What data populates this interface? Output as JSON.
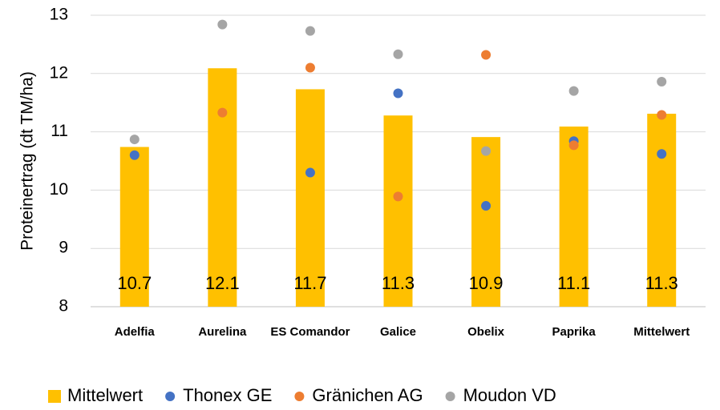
{
  "chart_data": {
    "type": "bar",
    "y_label": "Proteinertrag (dt TM/ha)",
    "categories": [
      "Adelfia",
      "Aurelina",
      "ES Comandor",
      "Galice",
      "Obelix",
      "Paprika",
      "Mittelwert"
    ],
    "series": [
      {
        "name": "Mittelwert",
        "type": "bar",
        "color": "#ffc000",
        "values": [
          10.74,
          12.09,
          11.73,
          11.28,
          10.91,
          11.09,
          11.31
        ],
        "value_labels": [
          "10.7",
          "12.1",
          "11.7",
          "11.3",
          "10.9",
          "11.1",
          "11.3"
        ]
      },
      {
        "name": "Thonex GE",
        "type": "scatter",
        "color": "#4472c4",
        "values": [
          10.6,
          null,
          10.3,
          11.66,
          9.73,
          10.84,
          10.62
        ]
      },
      {
        "name": "Gränichen AG",
        "type": "scatter",
        "color": "#ed7d31",
        "values": [
          null,
          11.33,
          12.1,
          9.89,
          12.32,
          10.77,
          11.29
        ]
      },
      {
        "name": "Moudon VD",
        "type": "scatter",
        "color": "#a5a5a5",
        "values": [
          10.87,
          12.84,
          12.73,
          12.33,
          10.67,
          11.7,
          11.86
        ]
      }
    ],
    "ylim": [
      8,
      13
    ],
    "yticks": [
      8,
      9,
      10,
      11,
      12,
      13
    ],
    "grid": true,
    "legend": "bottom"
  }
}
